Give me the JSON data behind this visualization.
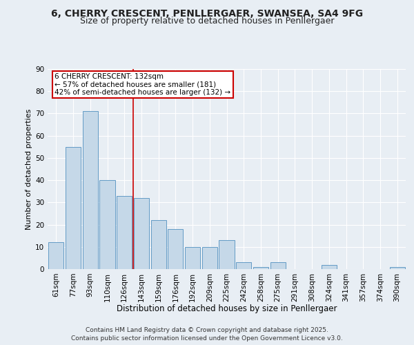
{
  "title1": "6, CHERRY CRESCENT, PENLLERGAER, SWANSEA, SA4 9FG",
  "title2": "Size of property relative to detached houses in Penllergaer",
  "xlabel": "Distribution of detached houses by size in Penllergaer",
  "ylabel": "Number of detached properties",
  "categories": [
    "61sqm",
    "77sqm",
    "93sqm",
    "110sqm",
    "126sqm",
    "143sqm",
    "159sqm",
    "176sqm",
    "192sqm",
    "209sqm",
    "225sqm",
    "242sqm",
    "258sqm",
    "275sqm",
    "291sqm",
    "308sqm",
    "324sqm",
    "341sqm",
    "357sqm",
    "374sqm",
    "390sqm"
  ],
  "values": [
    12,
    55,
    71,
    40,
    33,
    32,
    22,
    18,
    10,
    10,
    13,
    3,
    1,
    3,
    0,
    0,
    2,
    0,
    0,
    0,
    1
  ],
  "bar_color": "#c5d8e8",
  "bar_edgecolor": "#4f8fbf",
  "bg_color": "#e8eef4",
  "grid_color": "#ffffff",
  "vline_x": 4.5,
  "vline_color": "#cc0000",
  "annotation_text": "6 CHERRY CRESCENT: 132sqm\n← 57% of detached houses are smaller (181)\n42% of semi-detached houses are larger (132) →",
  "annotation_box_color": "#cc0000",
  "ylim": [
    0,
    90
  ],
  "yticks": [
    0,
    10,
    20,
    30,
    40,
    50,
    60,
    70,
    80,
    90
  ],
  "footer": "Contains HM Land Registry data © Crown copyright and database right 2025.\nContains public sector information licensed under the Open Government Licence v3.0.",
  "title_fontsize": 10,
  "subtitle_fontsize": 9,
  "xlabel_fontsize": 8.5,
  "ylabel_fontsize": 8,
  "tick_fontsize": 7.5,
  "annotation_fontsize": 7.5,
  "footer_fontsize": 6.5
}
